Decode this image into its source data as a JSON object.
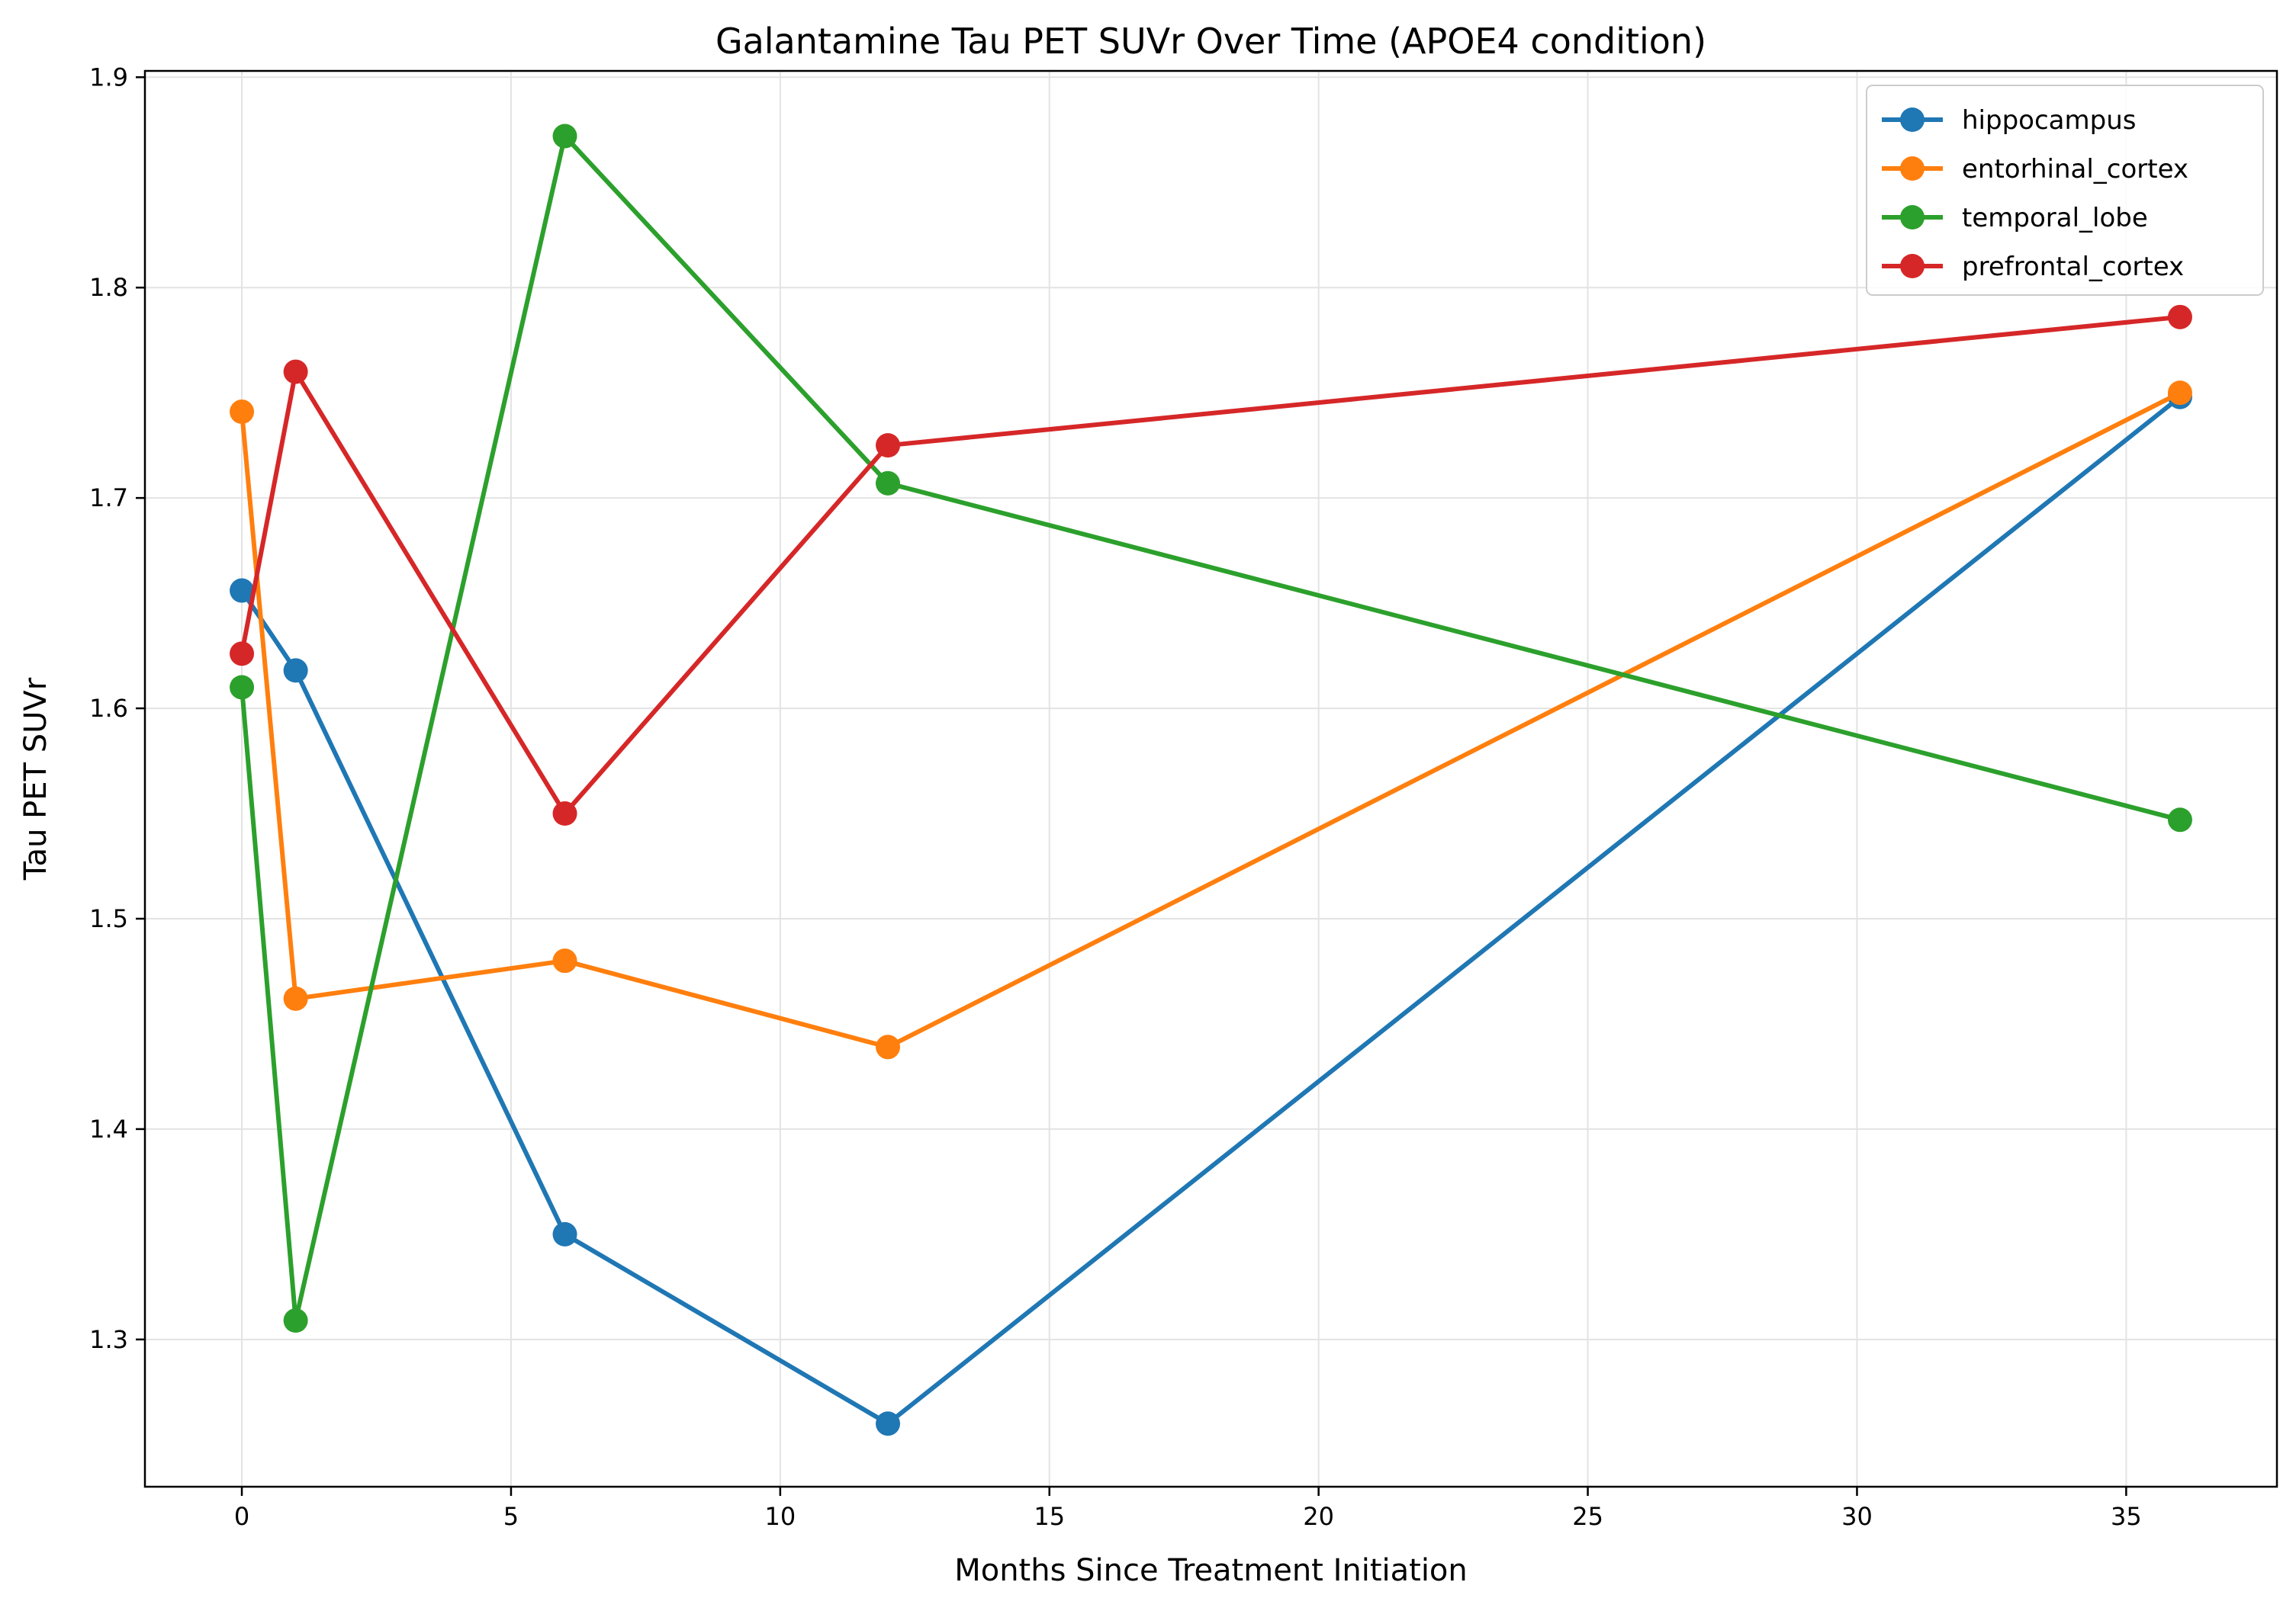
{
  "chart_data": {
    "type": "line",
    "title": "Galantamine Tau PET SUVr Over Time (APOE4 condition)",
    "xlabel": "Months Since Treatment Initiation",
    "ylabel": "Tau PET SUVr",
    "xlim": [
      -1.8,
      37.8
    ],
    "ylim": [
      1.23,
      1.903
    ],
    "xticks": [
      0,
      5,
      10,
      15,
      20,
      25,
      30,
      35
    ],
    "yticks": [
      1.3,
      1.4,
      1.5,
      1.6,
      1.7,
      1.8,
      1.9
    ],
    "xtick_labels": [
      "0",
      "5",
      "10",
      "15",
      "20",
      "25",
      "30",
      "35"
    ],
    "ytick_labels": [
      "1.3",
      "1.4",
      "1.5",
      "1.6",
      "1.7",
      "1.8",
      "1.9"
    ],
    "grid": true,
    "legend_position": "top-right",
    "x": [
      0,
      1,
      6,
      12,
      36
    ],
    "series": [
      {
        "name": "hippocampus",
        "color": "#1f77b4",
        "values": [
          1.656,
          1.618,
          1.35,
          1.26,
          1.748
        ]
      },
      {
        "name": "entorhinal_cortex",
        "color": "#ff7f0e",
        "values": [
          1.741,
          1.462,
          1.48,
          1.439,
          1.75
        ]
      },
      {
        "name": "temporal_lobe",
        "color": "#2ca02c",
        "values": [
          1.61,
          1.309,
          1.872,
          1.707,
          1.547
        ]
      },
      {
        "name": "prefrontal_cortex",
        "color": "#d62728",
        "values": [
          1.626,
          1.76,
          1.55,
          1.725,
          1.786
        ]
      }
    ]
  }
}
